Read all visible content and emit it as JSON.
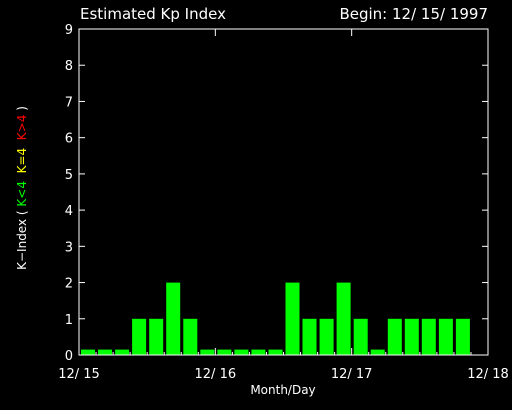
{
  "chart_data": {
    "type": "bar",
    "title": "Estimated Kp Index",
    "subtitle": "Begin: 12/ 15/ 1997",
    "xlabel": "Month/Day",
    "ylabel_parts": [
      {
        "text": "K−Index ( ",
        "color": "#ffffff"
      },
      {
        "text": "K<4",
        "color": "#00ff00"
      },
      {
        "text": "  ",
        "color": "#ffffff"
      },
      {
        "text": "K=4",
        "color": "#ffff00"
      },
      {
        "text": "  ",
        "color": "#ffffff"
      },
      {
        "text": "K>4",
        "color": "#ff0000"
      },
      {
        "text": " )",
        "color": "#ffffff"
      }
    ],
    "ylim": [
      0,
      9
    ],
    "yticks": [
      "0",
      "1",
      "2",
      "3",
      "4",
      "5",
      "6",
      "7",
      "8",
      "9"
    ],
    "xlim_days": [
      0,
      3
    ],
    "xticks": [
      {
        "label": "12/ 15",
        "day": 0
      },
      {
        "label": "12/ 16",
        "day": 1
      },
      {
        "label": "12/ 17",
        "day": 2
      },
      {
        "label": "12/ 18",
        "day": 3
      }
    ],
    "interval_hours": 3,
    "values": [
      0.15,
      0.15,
      0.15,
      1,
      1,
      2,
      1,
      0.15,
      0.15,
      0.15,
      0.15,
      0.15,
      2,
      1,
      1,
      2,
      1,
      0.15,
      1,
      1,
      1,
      1,
      1,
      0
    ],
    "bar_color": "#00ff00",
    "axis_color": "#ffffff",
    "background": "#000000"
  }
}
